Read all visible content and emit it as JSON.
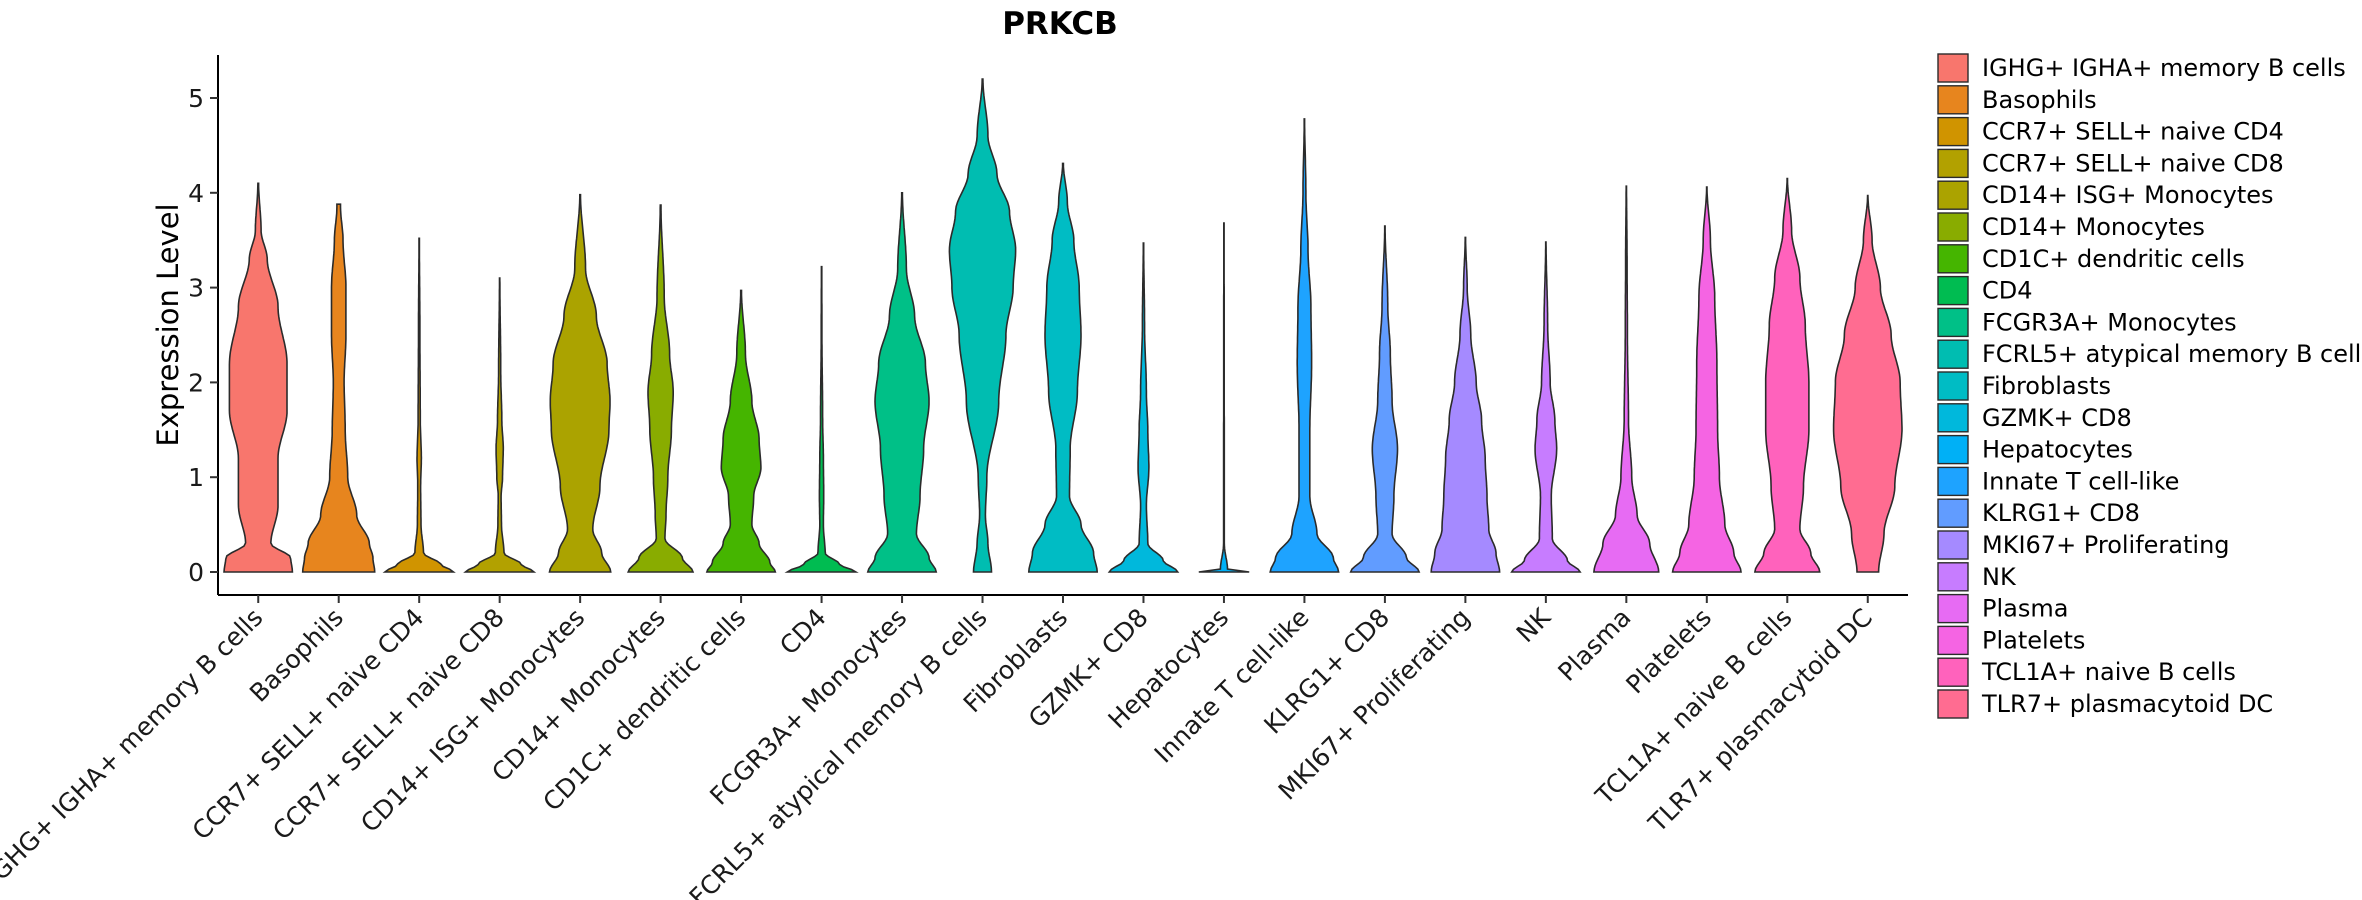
{
  "chart_data": {
    "type": "violin",
    "title": "PRKCB",
    "xlabel": "",
    "ylabel": "Expression Level",
    "ylim": [
      -0.25,
      5.45
    ],
    "yticks": [
      "0",
      "1",
      "2",
      "3",
      "4",
      "5"
    ],
    "legend_position": "right",
    "categories": [
      {
        "label": " IGHG+ IGHA+ memory B cells",
        "color": "#F8766D",
        "max": 4.1,
        "profile": [
          [
            0,
            0.95
          ],
          [
            0.15,
            0.9
          ],
          [
            0.3,
            0.35
          ],
          [
            0.7,
            0.55
          ],
          [
            1.2,
            0.55
          ],
          [
            1.7,
            0.8
          ],
          [
            2.2,
            0.8
          ],
          [
            2.8,
            0.55
          ],
          [
            3.3,
            0.25
          ],
          [
            3.6,
            0.08
          ],
          [
            4.1,
            0.01
          ]
        ]
      },
      {
        "label": "Basophils",
        "color": "#E7851E",
        "max": 3.88,
        "profile": [
          [
            0,
            1.0
          ],
          [
            0.15,
            0.95
          ],
          [
            0.3,
            0.85
          ],
          [
            0.6,
            0.5
          ],
          [
            1.0,
            0.25
          ],
          [
            1.5,
            0.18
          ],
          [
            2.0,
            0.15
          ],
          [
            2.5,
            0.2
          ],
          [
            3.0,
            0.2
          ],
          [
            3.5,
            0.12
          ],
          [
            3.85,
            0.05
          ]
        ]
      },
      {
        "label": "CCR7+ SELL+ naive CD4",
        "color": "#D09400",
        "max": 3.52,
        "profile": [
          [
            0,
            0.95
          ],
          [
            0.08,
            0.6
          ],
          [
            0.2,
            0.12
          ],
          [
            0.5,
            0.05
          ],
          [
            0.9,
            0.04
          ],
          [
            1.2,
            0.06
          ],
          [
            1.6,
            0.03
          ],
          [
            2.5,
            0.02
          ],
          [
            3.52,
            0.005
          ]
        ]
      },
      {
        "label": "CCR7+ SELL+ naive CD8",
        "color": "#B2A100",
        "max": 3.1,
        "profile": [
          [
            0,
            0.95
          ],
          [
            0.08,
            0.6
          ],
          [
            0.2,
            0.12
          ],
          [
            0.5,
            0.05
          ],
          [
            0.8,
            0.04
          ],
          [
            1.0,
            0.08
          ],
          [
            1.3,
            0.1
          ],
          [
            1.6,
            0.06
          ],
          [
            2.1,
            0.03
          ],
          [
            3.1,
            0.005
          ]
        ]
      },
      {
        "label": "CD14+ ISG+ Monocytes",
        "color": "#ABA300",
        "max": 3.98,
        "profile": [
          [
            0,
            0.85
          ],
          [
            0.2,
            0.6
          ],
          [
            0.45,
            0.35
          ],
          [
            0.9,
            0.55
          ],
          [
            1.5,
            0.8
          ],
          [
            1.8,
            0.83
          ],
          [
            2.2,
            0.75
          ],
          [
            2.7,
            0.45
          ],
          [
            3.2,
            0.15
          ],
          [
            3.98,
            0.01
          ]
        ]
      },
      {
        "label": "CD14+ Monocytes",
        "color": "#89AC00",
        "max": 3.87,
        "profile": [
          [
            0,
            0.9
          ],
          [
            0.15,
            0.6
          ],
          [
            0.35,
            0.12
          ],
          [
            0.6,
            0.15
          ],
          [
            1.0,
            0.2
          ],
          [
            1.5,
            0.3
          ],
          [
            1.9,
            0.35
          ],
          [
            2.3,
            0.25
          ],
          [
            2.9,
            0.1
          ],
          [
            3.87,
            0.01
          ]
        ]
      },
      {
        "label": "CD1C+ dendritic cells",
        "color": "#45B500",
        "max": 2.97,
        "profile": [
          [
            0,
            0.95
          ],
          [
            0.1,
            0.8
          ],
          [
            0.3,
            0.5
          ],
          [
            0.5,
            0.3
          ],
          [
            0.8,
            0.35
          ],
          [
            1.1,
            0.55
          ],
          [
            1.4,
            0.5
          ],
          [
            1.8,
            0.3
          ],
          [
            2.3,
            0.12
          ],
          [
            2.97,
            0.01
          ]
        ]
      },
      {
        "label": "CD4",
        "color": "#00BC51",
        "max": 3.22,
        "profile": [
          [
            0,
            0.95
          ],
          [
            0.08,
            0.5
          ],
          [
            0.2,
            0.1
          ],
          [
            0.5,
            0.05
          ],
          [
            0.8,
            0.06
          ],
          [
            1.2,
            0.05
          ],
          [
            1.6,
            0.03
          ],
          [
            2.5,
            0.01
          ],
          [
            3.22,
            0.005
          ]
        ]
      },
      {
        "label": "FCGR3A+ Monocytes",
        "color": "#00C087",
        "max": 4.0,
        "profile": [
          [
            0,
            0.95
          ],
          [
            0.15,
            0.75
          ],
          [
            0.4,
            0.4
          ],
          [
            0.8,
            0.5
          ],
          [
            1.3,
            0.6
          ],
          [
            1.8,
            0.75
          ],
          [
            2.2,
            0.65
          ],
          [
            2.7,
            0.35
          ],
          [
            3.2,
            0.12
          ],
          [
            4.0,
            0.01
          ]
        ]
      },
      {
        "label": "FCRL5+ atypical memory B cells",
        "color": "#00BDB1",
        "max": 5.2,
        "profile": [
          [
            0,
            0.25
          ],
          [
            0.3,
            0.15
          ],
          [
            0.6,
            0.08
          ],
          [
            1.0,
            0.12
          ],
          [
            1.8,
            0.45
          ],
          [
            2.5,
            0.65
          ],
          [
            3.0,
            0.85
          ],
          [
            3.4,
            0.92
          ],
          [
            3.8,
            0.75
          ],
          [
            4.2,
            0.4
          ],
          [
            4.6,
            0.15
          ],
          [
            5.2,
            0.01
          ]
        ]
      },
      {
        "label": "Fibroblasts",
        "color": "#00BCC4",
        "max": 4.31,
        "profile": [
          [
            0,
            0.95
          ],
          [
            0.2,
            0.85
          ],
          [
            0.5,
            0.5
          ],
          [
            0.8,
            0.18
          ],
          [
            1.3,
            0.2
          ],
          [
            1.9,
            0.4
          ],
          [
            2.5,
            0.5
          ],
          [
            3.0,
            0.45
          ],
          [
            3.5,
            0.3
          ],
          [
            3.9,
            0.12
          ],
          [
            4.31,
            0.01
          ]
        ]
      },
      {
        "label": "GZMK+ CD8",
        "color": "#00B8DC",
        "max": 3.47,
        "profile": [
          [
            0,
            0.95
          ],
          [
            0.12,
            0.55
          ],
          [
            0.3,
            0.12
          ],
          [
            0.7,
            0.08
          ],
          [
            1.1,
            0.15
          ],
          [
            1.5,
            0.12
          ],
          [
            1.9,
            0.08
          ],
          [
            2.6,
            0.03
          ],
          [
            3.47,
            0.005
          ]
        ]
      },
      {
        "label": "Hepatocytes",
        "color": "#00B0F6",
        "max": 3.68,
        "profile": [
          [
            0,
            0.7
          ],
          [
            0.02,
            0.1
          ],
          [
            0.3,
            0.01
          ],
          [
            3.68,
            0.005
          ]
        ]
      },
      {
        "label": "Innate T cell-like",
        "color": "#1EA3FF",
        "max": 4.78,
        "profile": [
          [
            0,
            0.95
          ],
          [
            0.15,
            0.8
          ],
          [
            0.4,
            0.35
          ],
          [
            0.8,
            0.15
          ],
          [
            1.5,
            0.15
          ],
          [
            2.2,
            0.2
          ],
          [
            2.8,
            0.18
          ],
          [
            3.4,
            0.1
          ],
          [
            4.0,
            0.04
          ],
          [
            4.78,
            0.005
          ]
        ]
      },
      {
        "label": "KLRG1+ CD8",
        "color": "#619CFF",
        "max": 3.65,
        "profile": [
          [
            0,
            0.95
          ],
          [
            0.15,
            0.6
          ],
          [
            0.4,
            0.2
          ],
          [
            0.8,
            0.25
          ],
          [
            1.3,
            0.35
          ],
          [
            1.8,
            0.2
          ],
          [
            2.3,
            0.15
          ],
          [
            2.8,
            0.08
          ],
          [
            3.65,
            0.005
          ]
        ]
      },
      {
        "label": "MKI67+ Proliferating",
        "color": "#A58AFF",
        "max": 3.53,
        "profile": [
          [
            0,
            0.95
          ],
          [
            0.2,
            0.85
          ],
          [
            0.45,
            0.65
          ],
          [
            0.8,
            0.6
          ],
          [
            1.2,
            0.55
          ],
          [
            1.6,
            0.45
          ],
          [
            2.0,
            0.3
          ],
          [
            2.5,
            0.15
          ],
          [
            3.0,
            0.05
          ],
          [
            3.53,
            0.005
          ]
        ]
      },
      {
        "label": "NK",
        "color": "#C77CFF",
        "max": 3.48,
        "profile": [
          [
            0,
            0.95
          ],
          [
            0.12,
            0.6
          ],
          [
            0.35,
            0.18
          ],
          [
            0.8,
            0.15
          ],
          [
            1.3,
            0.3
          ],
          [
            1.6,
            0.25
          ],
          [
            2.0,
            0.12
          ],
          [
            2.6,
            0.05
          ],
          [
            3.48,
            0.005
          ]
        ]
      },
      {
        "label": "Plasma",
        "color": "#E76BF3",
        "max": 4.07,
        "profile": [
          [
            0,
            0.9
          ],
          [
            0.3,
            0.65
          ],
          [
            0.6,
            0.3
          ],
          [
            1.0,
            0.15
          ],
          [
            1.6,
            0.06
          ],
          [
            2.5,
            0.03
          ],
          [
            3.3,
            0.02
          ],
          [
            4.07,
            0.005
          ]
        ]
      },
      {
        "label": "Platelets",
        "color": "#F564E3",
        "max": 4.06,
        "profile": [
          [
            0,
            0.95
          ],
          [
            0.2,
            0.75
          ],
          [
            0.5,
            0.5
          ],
          [
            1.0,
            0.35
          ],
          [
            1.5,
            0.3
          ],
          [
            2.2,
            0.28
          ],
          [
            2.9,
            0.22
          ],
          [
            3.5,
            0.1
          ],
          [
            4.06,
            0.005
          ]
        ]
      },
      {
        "label": "TCL1A+ naive B cells",
        "color": "#FF62BC",
        "max": 4.15,
        "profile": [
          [
            0,
            0.9
          ],
          [
            0.2,
            0.65
          ],
          [
            0.45,
            0.35
          ],
          [
            0.9,
            0.45
          ],
          [
            1.5,
            0.6
          ],
          [
            2.0,
            0.6
          ],
          [
            2.6,
            0.5
          ],
          [
            3.1,
            0.35
          ],
          [
            3.6,
            0.12
          ],
          [
            4.15,
            0.005
          ]
        ]
      },
      {
        "label": "TLR7+ plasmacytoid DC",
        "color": "#FF6C91",
        "max": 3.97,
        "profile": [
          [
            0,
            0.3
          ],
          [
            0.4,
            0.45
          ],
          [
            0.9,
            0.75
          ],
          [
            1.5,
            0.95
          ],
          [
            2.0,
            0.9
          ],
          [
            2.5,
            0.65
          ],
          [
            3.0,
            0.35
          ],
          [
            3.5,
            0.12
          ],
          [
            3.97,
            0.005
          ]
        ]
      }
    ]
  }
}
